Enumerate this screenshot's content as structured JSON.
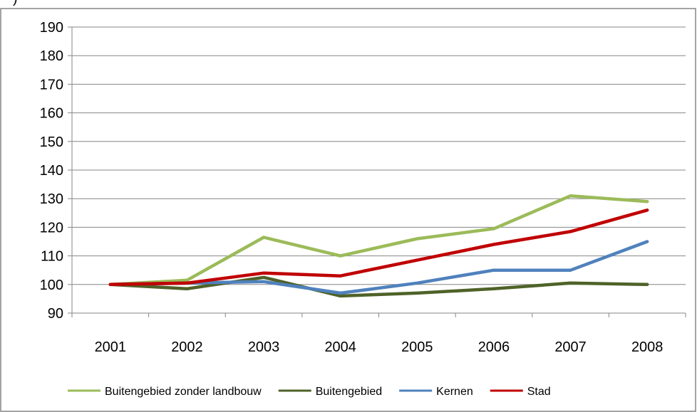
{
  "top_text": ")",
  "chart_data": {
    "type": "line",
    "title": "",
    "xlabel": "",
    "ylabel": "",
    "categories": [
      "2001",
      "2002",
      "2003",
      "2004",
      "2005",
      "2006",
      "2007",
      "2008"
    ],
    "ylim": [
      90,
      190
    ],
    "yticks": [
      90,
      100,
      110,
      120,
      130,
      140,
      150,
      160,
      170,
      180,
      190
    ],
    "grid": true,
    "legend_position": "bottom",
    "series": [
      {
        "name": "Buitengebied zonder landbouw",
        "color": "#9BBB59",
        "values": [
          100,
          101.5,
          116.5,
          110,
          116,
          119.5,
          131,
          129
        ]
      },
      {
        "name": "Buitengebied",
        "color": "#4F6228",
        "values": [
          100,
          98.5,
          102.5,
          96,
          97,
          98.5,
          100.5,
          100
        ]
      },
      {
        "name": "Kernen",
        "color": "#4F81BD",
        "values": [
          100,
          100.5,
          101,
          97,
          100.5,
          105,
          105,
          115
        ]
      },
      {
        "name": "Stad",
        "color": "#C00000",
        "values": [
          100,
          100.5,
          104,
          103,
          108.5,
          114,
          118.5,
          126
        ]
      }
    ]
  }
}
